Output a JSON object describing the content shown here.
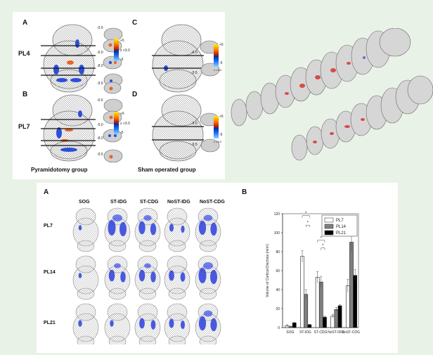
{
  "top_figure": {
    "panel_letters": [
      "A",
      "B",
      "C",
      "D"
    ],
    "row_labels": [
      "PL4",
      "PL7"
    ],
    "group_labels": [
      "Pyramidotomy group",
      "Sham operated group"
    ],
    "slice_levels_a": [
      "-0.5",
      "-6.0",
      "-8.0",
      "-9.5"
    ],
    "slice_levels_b": [
      "-0.5",
      "-5.0",
      "-8.0",
      "-9.5"
    ],
    "slice_levels_c": [
      "-6.0",
      "-9.5"
    ],
    "slice_levels_d": [
      "-6.0",
      "-9.5"
    ],
    "colorbar": {
      "max": "+5",
      "threshold": "z >3.0",
      "min": "-5"
    },
    "colors": {
      "positive": "#e8641e",
      "negative": "#2a4fd8"
    }
  },
  "bottom_figure": {
    "panel_a_letter": "A",
    "panel_b_letter": "B",
    "columns": [
      "SOG",
      "ST-IDG",
      "ST-CDG",
      "NoST-IDG",
      "NoST-CDG"
    ],
    "rows": [
      "PL7",
      "PL14",
      "PL21"
    ]
  },
  "chart_data": {
    "type": "bar",
    "categories": [
      "SOG",
      "ST-IDG",
      "ST-CDG",
      "NoST-IDG",
      "NoST-CDG"
    ],
    "series": [
      {
        "name": "PL7",
        "values": [
          2,
          75,
          53,
          12,
          44
        ],
        "errors": [
          1,
          6,
          6,
          2,
          7
        ],
        "color": "#ffffff"
      },
      {
        "name": "PL14",
        "values": [
          1,
          35,
          48,
          19,
          90
        ],
        "errors": [
          0.5,
          5,
          6,
          2,
          10
        ],
        "color": "#808080"
      },
      {
        "name": "PL21",
        "values": [
          5,
          3,
          11,
          23,
          55
        ],
        "errors": [
          0.5,
          0.5,
          1,
          1,
          6
        ],
        "color": "#000000"
      }
    ],
    "ylabel": "Volume of Cortical Dischios (mm³)",
    "ylim": [
      0,
      120
    ],
    "yticks": [
      "0",
      "20",
      "40",
      "60",
      "80",
      "100",
      "120"
    ],
    "legend": "top-right",
    "grid": false,
    "significance": "*"
  }
}
